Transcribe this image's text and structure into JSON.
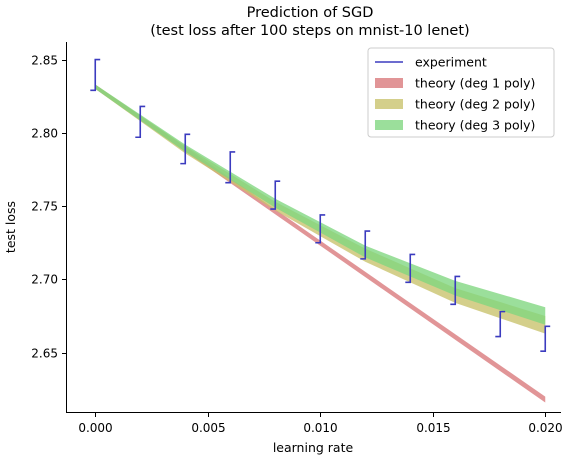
{
  "chart_data": {
    "type": "line",
    "title": "Prediction of SGD",
    "subtitle": "(test loss after 100 steps on mnist-10 lenet)",
    "xlabel": "learning rate",
    "ylabel": "test loss",
    "xlim": [
      -0.0013,
      0.0207
    ],
    "ylim": [
      2.6095,
      2.862
    ],
    "xticks": [
      0.0,
      0.005,
      0.01,
      0.015,
      0.02
    ],
    "xtick_labels": [
      "0.000",
      "0.005",
      "0.010",
      "0.015",
      "0.020"
    ],
    "yticks": [
      2.65,
      2.7,
      2.75,
      2.8,
      2.85
    ],
    "ytick_labels": [
      "2.65",
      "2.70",
      "2.75",
      "2.80",
      "2.85"
    ],
    "grid": false,
    "legend_position": "top-right",
    "series": [
      {
        "name": "experiment",
        "kind": "step-errorbar",
        "color": "#3b3bbf",
        "x": [
          0.0,
          0.002,
          0.004,
          0.006,
          0.008,
          0.01,
          0.012,
          0.014,
          0.016,
          0.018,
          0.02
        ],
        "y_low": [
          2.829,
          2.797,
          2.779,
          2.766,
          2.748,
          2.725,
          2.714,
          2.698,
          2.683,
          2.661,
          2.651
        ],
        "y_high": [
          2.85,
          2.818,
          2.799,
          2.787,
          2.767,
          2.744,
          2.733,
          2.717,
          2.702,
          2.678,
          2.668
        ]
      },
      {
        "name": "theory (deg 1 poly)",
        "kind": "band",
        "color": "#d9777a",
        "x": [
          0.0,
          0.02
        ],
        "y_low": [
          2.83,
          2.616
        ],
        "y_high": [
          2.833,
          2.62
        ]
      },
      {
        "name": "theory (deg 2 poly)",
        "kind": "band",
        "color": "#c8c26a",
        "x": [
          0.0,
          0.004,
          0.008,
          0.012,
          0.016,
          0.02
        ],
        "y_low": [
          2.83,
          2.786,
          2.747,
          2.712,
          2.684,
          2.663
        ],
        "y_high": [
          2.833,
          2.791,
          2.753,
          2.721,
          2.694,
          2.675
        ]
      },
      {
        "name": "theory (deg 3 poly)",
        "kind": "band",
        "color": "#7fd67f",
        "x": [
          0.0,
          0.004,
          0.008,
          0.012,
          0.016,
          0.02
        ],
        "y_low": [
          2.83,
          2.787,
          2.749,
          2.715,
          2.689,
          2.669
        ],
        "y_high": [
          2.833,
          2.792,
          2.755,
          2.723,
          2.699,
          2.681
        ]
      }
    ]
  }
}
